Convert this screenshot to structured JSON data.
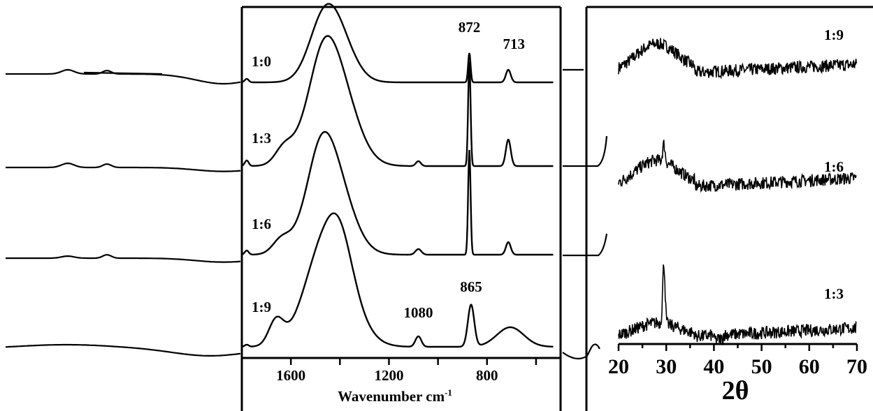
{
  "chart_data": [
    {
      "type": "line",
      "title": "",
      "xlabel": "Wavenumber cm",
      "xlabel_sup": "-1",
      "ylabel": "",
      "xlim": [
        1800,
        500
      ],
      "x_ticks": [
        1600,
        1200,
        800
      ],
      "x_tick_labels": [
        "1600",
        "1200",
        "800"
      ],
      "grid": false,
      "legend": "none",
      "series": [
        {
          "name": "1:0",
          "baseline": 0.79
        },
        {
          "name": "1:3",
          "baseline": 0.54
        },
        {
          "name": "1:6",
          "baseline": 0.31
        },
        {
          "name": "1:9",
          "baseline": 0.0
        }
      ],
      "peaks": [
        {
          "label": "872",
          "x": 872,
          "series": "1:0"
        },
        {
          "label": "713",
          "x": 713,
          "series": "1:0"
        },
        {
          "label": "1080",
          "x": 1080,
          "series": "1:9"
        },
        {
          "label": "865",
          "x": 865,
          "series": "1:9"
        }
      ]
    },
    {
      "type": "line",
      "title": "",
      "xlabel": "2θ",
      "ylabel": "",
      "xlim": [
        20,
        70
      ],
      "x_ticks": [
        20,
        30,
        40,
        50,
        60,
        70
      ],
      "x_tick_labels": [
        "20",
        "30",
        "40",
        "50",
        "60",
        "70"
      ],
      "grid": false,
      "legend": "none",
      "series": [
        {
          "name": "1:9",
          "broad_center": 28,
          "sharp_peak": null
        },
        {
          "name": "1:6",
          "broad_center": 28,
          "sharp_peak": 29.5
        },
        {
          "name": "1:3",
          "broad_center": 28,
          "sharp_peak": 29.5
        }
      ]
    }
  ],
  "colors": {
    "line": "#000000",
    "background": "#ffffff"
  }
}
